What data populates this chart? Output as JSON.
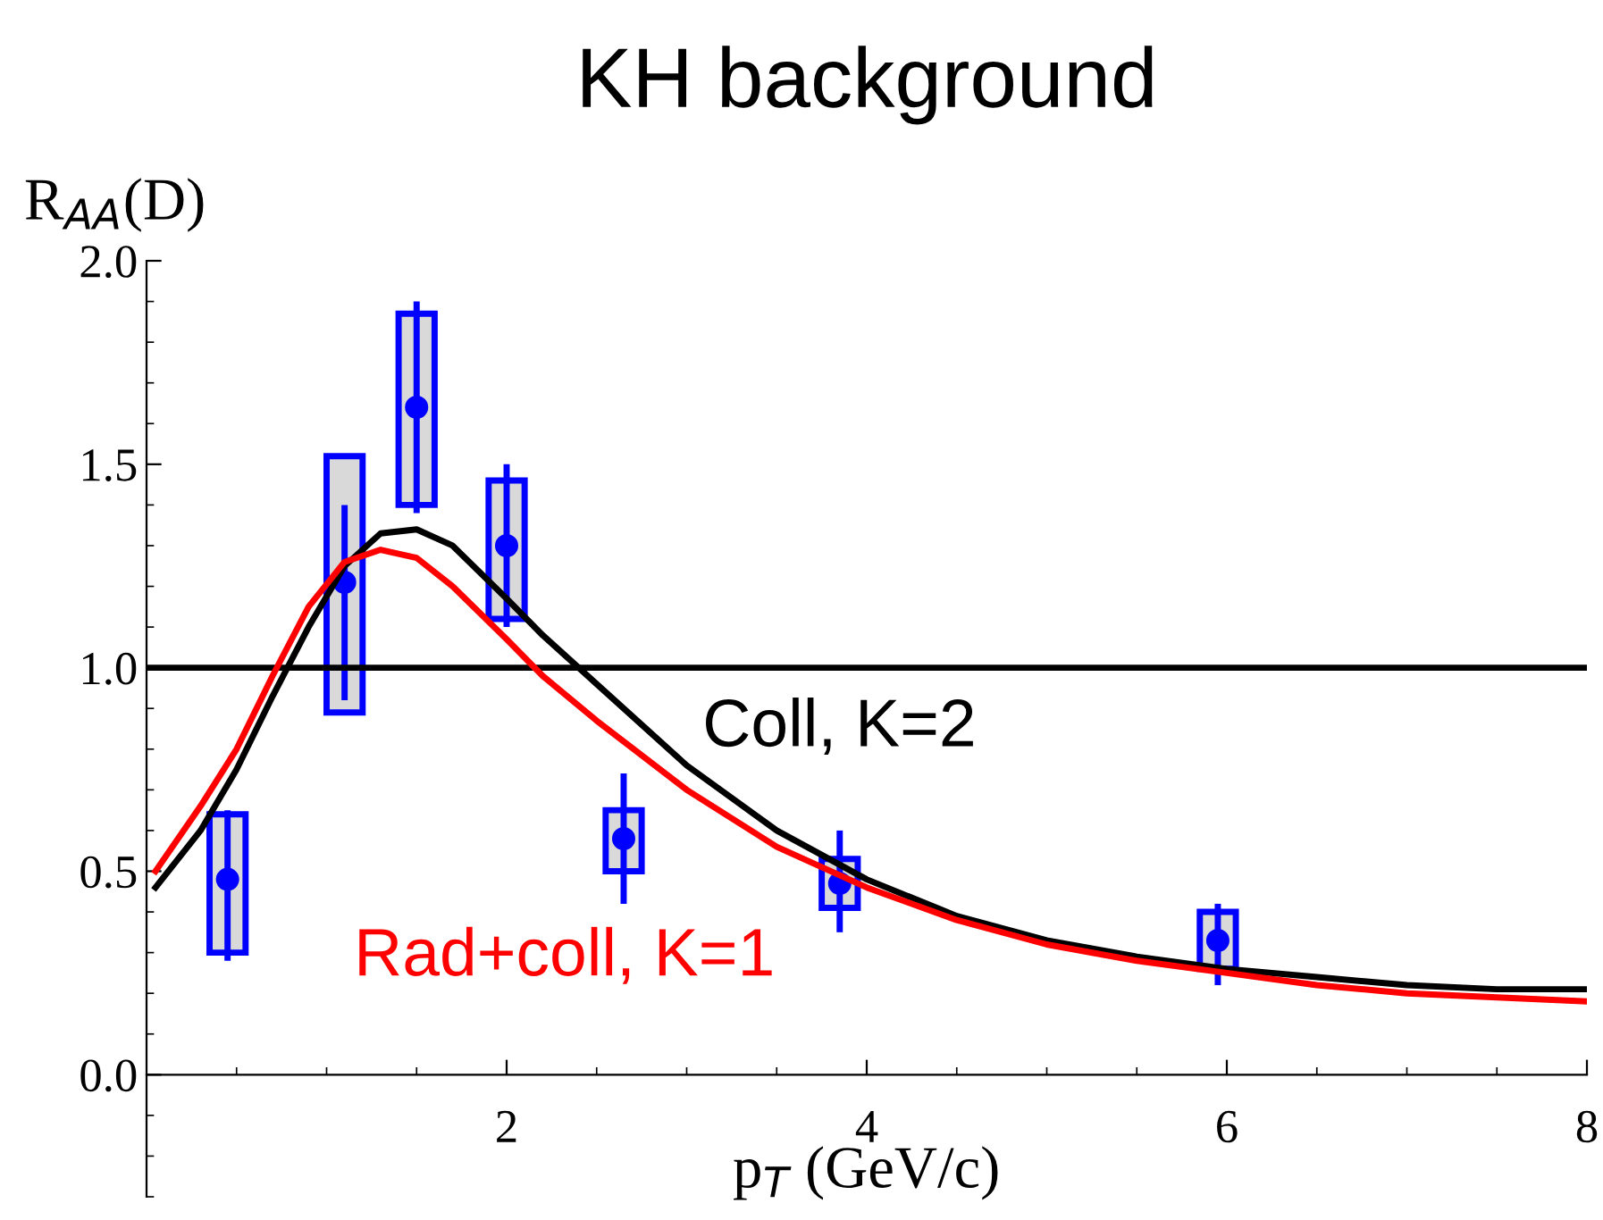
{
  "chart_data": {
    "type": "line",
    "title": "KH background",
    "xlabel": "p$_{T}$ (GeV/c)",
    "ylabel": "R$_{AA}$(D)",
    "xlim": [
      0,
      8
    ],
    "ylim": [
      -0.3,
      2.0
    ],
    "xticks": [
      2,
      4,
      6,
      8
    ],
    "yticks": [
      {
        "value": 0,
        "label": "0.0"
      },
      {
        "value": 0.5,
        "label": "0.5"
      },
      {
        "value": 1,
        "label": "1.0"
      },
      {
        "value": 1.5,
        "label": "1.5"
      },
      {
        "value": 2,
        "label": "2.0"
      }
    ],
    "grid": false,
    "legend": false,
    "ref_lines": [
      {
        "axis": "y",
        "value": 1,
        "color": "#000000",
        "line_style": "solid"
      }
    ],
    "series": [
      {
        "type": "bar",
        "color": "#d9d9d9",
        "x": [
          0.45,
          1.1,
          1.5,
          2.0,
          2.65,
          3.85,
          5.95
        ],
        "base": [
          0.3,
          0.89,
          1.4,
          1.12,
          0.5,
          0.41,
          0.26
        ],
        "values": [
          0.34,
          0.63,
          0.47,
          0.34,
          0.15,
          0.12,
          0.14
        ]
      },
      {
        "type": "scatter",
        "color": "#0000ff",
        "marker": "circle",
        "x": [
          0.45,
          1.1,
          1.5,
          2.0,
          2.65,
          3.85,
          5.95
        ],
        "values": [
          0.48,
          1.21,
          1.64,
          1.3,
          0.58,
          0.47,
          0.33
        ],
        "errors": [
          [
            0.28,
            0.65
          ],
          [
            0.92,
            1.4
          ],
          [
            1.38,
            1.9
          ],
          [
            1.1,
            1.5
          ],
          [
            0.42,
            0.74
          ],
          [
            0.35,
            0.6
          ],
          [
            0.22,
            0.42
          ]
        ]
      },
      {
        "name": "Coll, K=2",
        "color": "#000000",
        "x": [
          0.05,
          0.3,
          0.5,
          0.7,
          0.9,
          1.1,
          1.3,
          1.5,
          1.7,
          2.0,
          2.2,
          2.5,
          3.0,
          3.5,
          4.0,
          4.5,
          5.0,
          5.5,
          6.0,
          6.5,
          7.0,
          7.5,
          8.0
        ],
        "values": [
          0.46,
          0.6,
          0.75,
          0.93,
          1.1,
          1.25,
          1.33,
          1.34,
          1.3,
          1.17,
          1.08,
          0.96,
          0.76,
          0.6,
          0.48,
          0.39,
          0.33,
          0.29,
          0.26,
          0.24,
          0.22,
          0.21,
          0.21
        ]
      },
      {
        "name": "Rad+coll, K=1",
        "color": "#ff0000",
        "x": [
          0.05,
          0.3,
          0.5,
          0.7,
          0.9,
          1.1,
          1.3,
          1.5,
          1.7,
          2.0,
          2.2,
          2.5,
          3.0,
          3.5,
          4.0,
          4.5,
          5.0,
          5.5,
          6.0,
          6.5,
          7.0,
          7.5,
          8.0
        ],
        "values": [
          0.5,
          0.66,
          0.8,
          0.98,
          1.15,
          1.26,
          1.29,
          1.27,
          1.2,
          1.07,
          0.98,
          0.87,
          0.7,
          0.56,
          0.46,
          0.38,
          0.32,
          0.28,
          0.25,
          0.22,
          0.2,
          0.19,
          0.18
        ]
      }
    ]
  }
}
